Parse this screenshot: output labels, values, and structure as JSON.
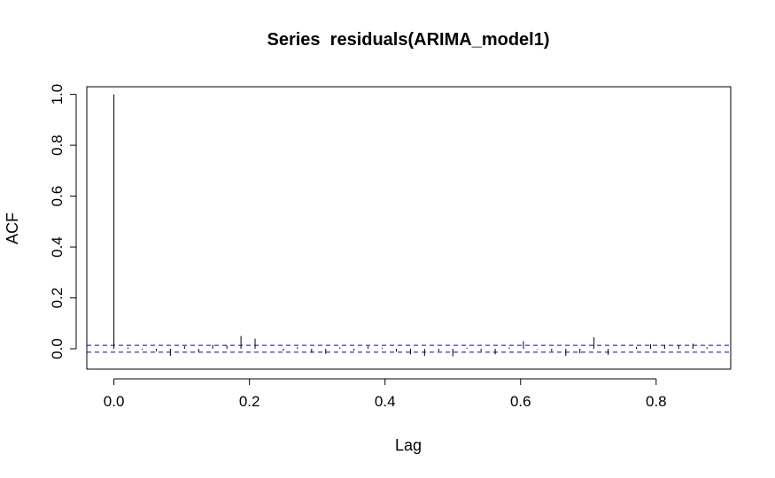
{
  "chart_data": {
    "type": "bar",
    "title": "Series  residuals(ARIMA_model1)",
    "xlabel": "Lag",
    "ylabel": "ACF",
    "xlim": [
      -0.04,
      0.91
    ],
    "ylim": [
      -0.08,
      1.03
    ],
    "x_ticks": [
      0.0,
      0.2,
      0.4,
      0.6,
      0.8
    ],
    "x_tick_labels": [
      "0.0",
      "0.2",
      "0.4",
      "0.6",
      "0.8"
    ],
    "y_ticks": [
      0.0,
      0.2,
      0.4,
      0.6,
      0.8,
      1.0
    ],
    "y_tick_labels": [
      "0.0",
      "0.2",
      "0.4",
      "0.6",
      "0.8",
      "1.0"
    ],
    "x": [
      0.0,
      0.0208,
      0.0417,
      0.0625,
      0.0833,
      0.1042,
      0.125,
      0.1458,
      0.1667,
      0.1875,
      0.2083,
      0.2292,
      0.25,
      0.2708,
      0.2917,
      0.3125,
      0.3333,
      0.3542,
      0.375,
      0.3958,
      0.4167,
      0.4375,
      0.4583,
      0.4792,
      0.5,
      0.5208,
      0.5417,
      0.5625,
      0.5833,
      0.6042,
      0.625,
      0.6458,
      0.6667,
      0.6875,
      0.7083,
      0.7292,
      0.75,
      0.7708,
      0.7917,
      0.8125,
      0.8333,
      0.8542,
      0.875
    ],
    "acf": [
      1.0,
      0.005,
      -0.004,
      -0.01,
      -0.028,
      0.01,
      -0.012,
      0.015,
      0.012,
      0.05,
      0.04,
      0.0,
      -0.008,
      0.006,
      -0.014,
      -0.02,
      0.005,
      -0.007,
      0.01,
      0.004,
      -0.012,
      -0.022,
      -0.028,
      -0.01,
      -0.03,
      0.004,
      -0.01,
      -0.022,
      0.005,
      0.03,
      -0.003,
      -0.01,
      -0.028,
      -0.018,
      0.045,
      -0.024,
      0.0,
      0.008,
      0.018,
      0.015,
      0.012,
      0.02,
      0.006
    ],
    "ci_bounds": [
      0.0135,
      -0.0135
    ],
    "ci_color": "#0000cc",
    "grid": false,
    "legend": "none"
  }
}
